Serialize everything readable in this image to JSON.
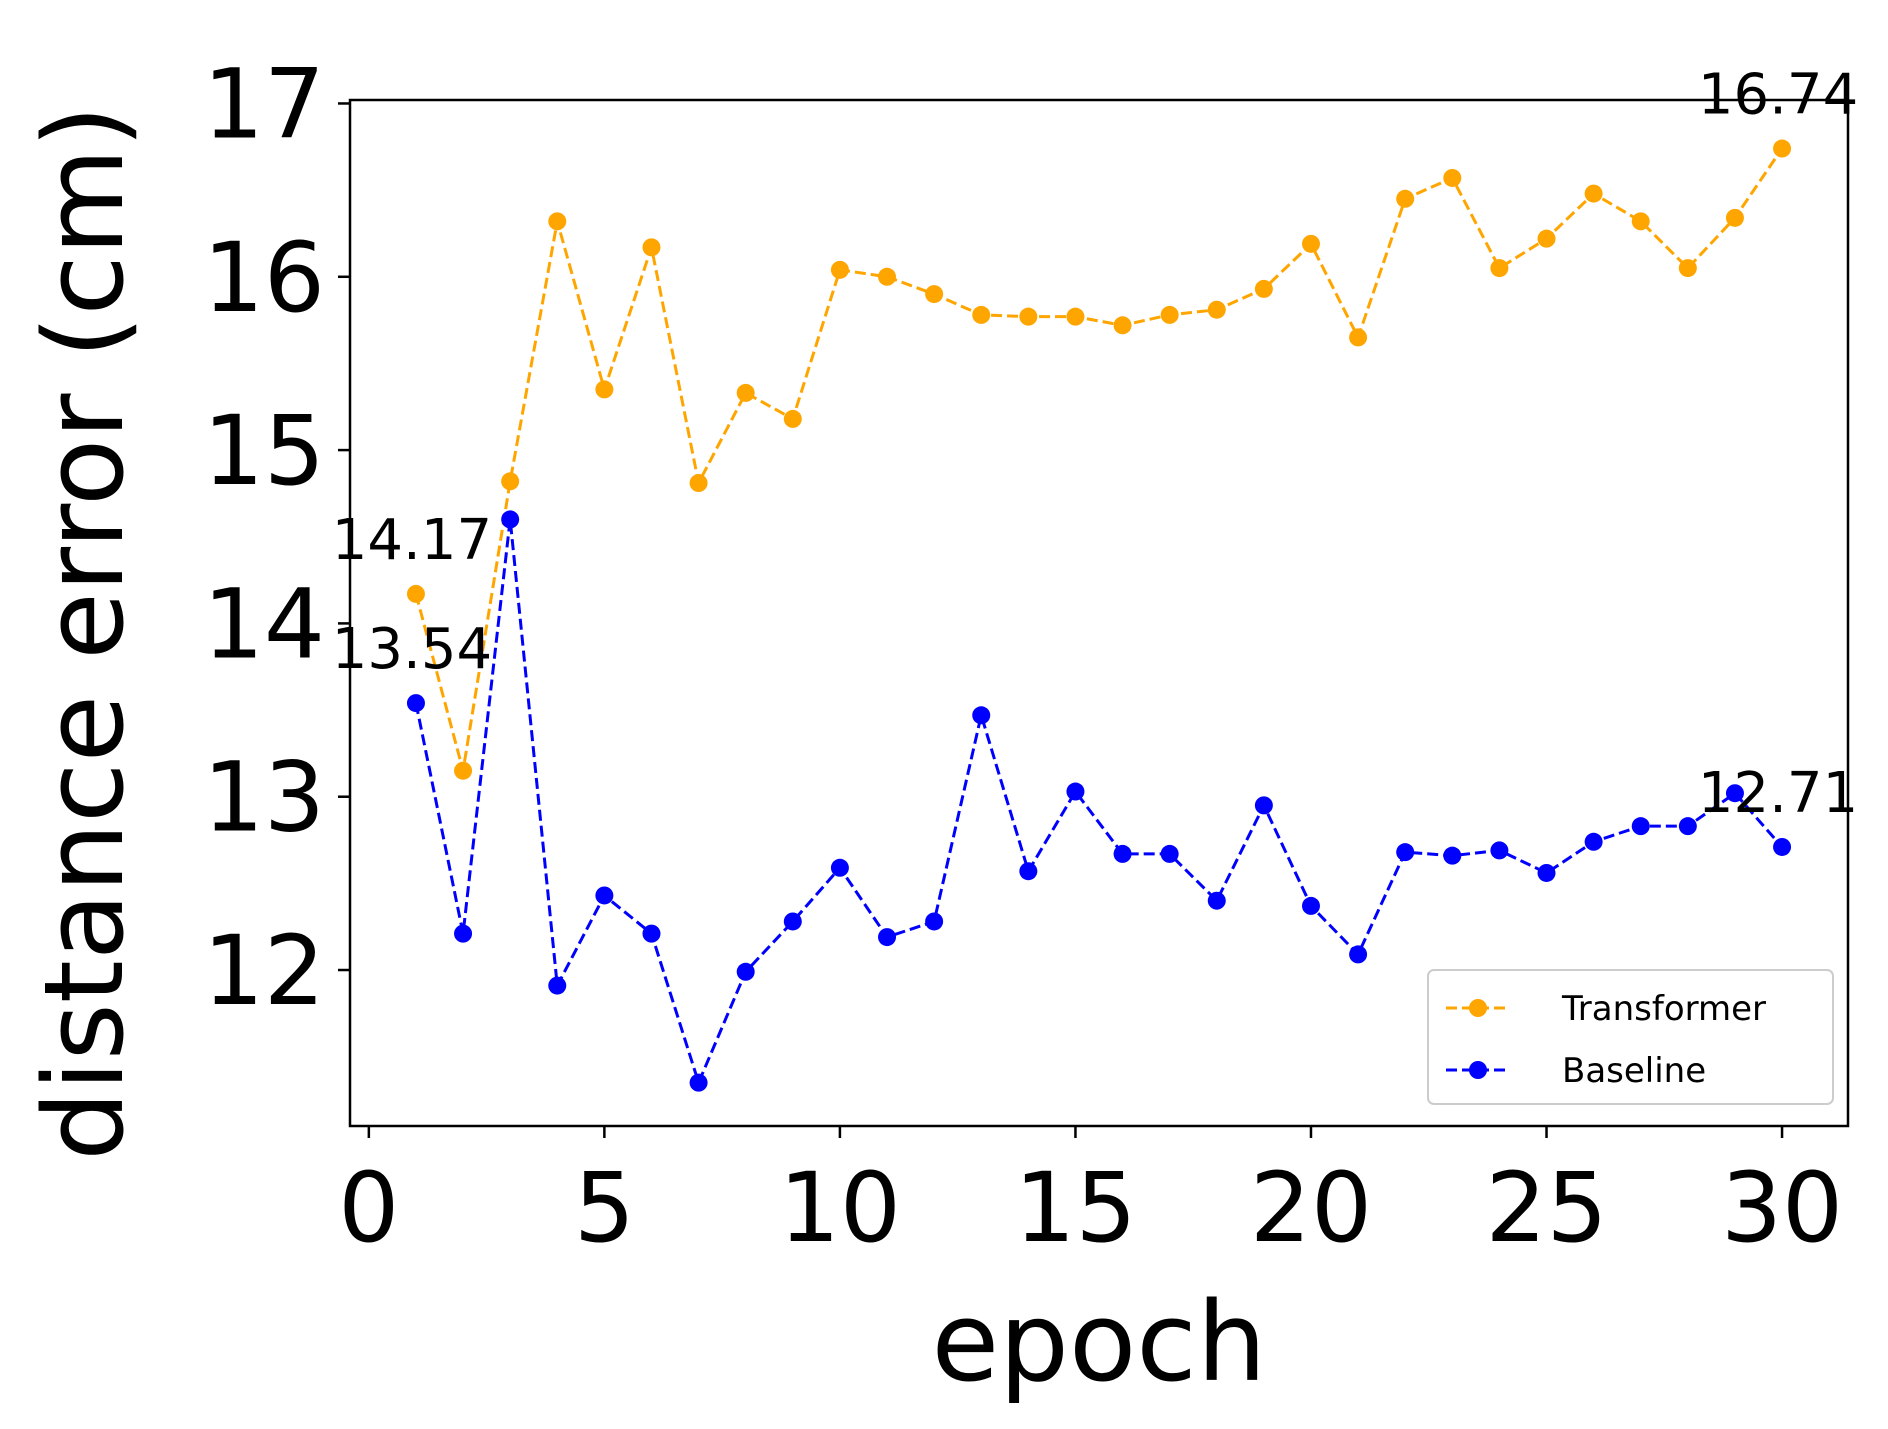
{
  "chart_data": {
    "type": "line",
    "xlabel": "epoch",
    "ylabel": "distance error (cm)",
    "xlim": [
      -0.4,
      31.4
    ],
    "ylim": [
      11.1,
      17.02
    ],
    "xticks": [
      0,
      5,
      10,
      15,
      20,
      25,
      30
    ],
    "yticks": [
      12,
      13,
      14,
      15,
      16,
      17
    ],
    "x": [
      1,
      2,
      3,
      4,
      5,
      6,
      7,
      8,
      9,
      10,
      11,
      12,
      13,
      14,
      15,
      16,
      17,
      18,
      19,
      20,
      21,
      22,
      23,
      24,
      25,
      26,
      27,
      28,
      29,
      30
    ],
    "series": [
      {
        "name": "Transformer",
        "color": "#FFA500",
        "values": [
          14.17,
          13.15,
          14.82,
          16.32,
          15.35,
          16.17,
          14.81,
          15.33,
          15.18,
          16.04,
          16.0,
          15.9,
          15.78,
          15.77,
          15.77,
          15.72,
          15.78,
          15.81,
          15.93,
          16.19,
          15.65,
          16.45,
          16.57,
          16.05,
          16.22,
          16.48,
          16.32,
          16.05,
          16.34,
          16.74
        ]
      },
      {
        "name": "Baseline",
        "color": "#0000FF",
        "values": [
          13.54,
          12.21,
          14.6,
          11.91,
          12.43,
          12.21,
          11.35,
          11.99,
          12.28,
          12.59,
          12.19,
          12.28,
          13.47,
          12.57,
          13.03,
          12.67,
          12.67,
          12.4,
          12.95,
          12.37,
          12.09,
          12.68,
          12.66,
          12.69,
          12.56,
          12.74,
          12.83,
          12.83,
          13.02,
          12.71
        ]
      }
    ],
    "annotations": [
      {
        "text": "14.17",
        "series": "Transformer",
        "x": 1
      },
      {
        "text": "13.54",
        "series": "Baseline",
        "x": 1
      },
      {
        "text": "16.74",
        "series": "Transformer",
        "x": 30
      },
      {
        "text": "12.71",
        "series": "Baseline",
        "x": 30
      }
    ],
    "legend": {
      "position": "lower-right",
      "entries": [
        "Transformer",
        "Baseline"
      ]
    },
    "grid": false,
    "line_style": "dashed",
    "marker": "circle"
  }
}
